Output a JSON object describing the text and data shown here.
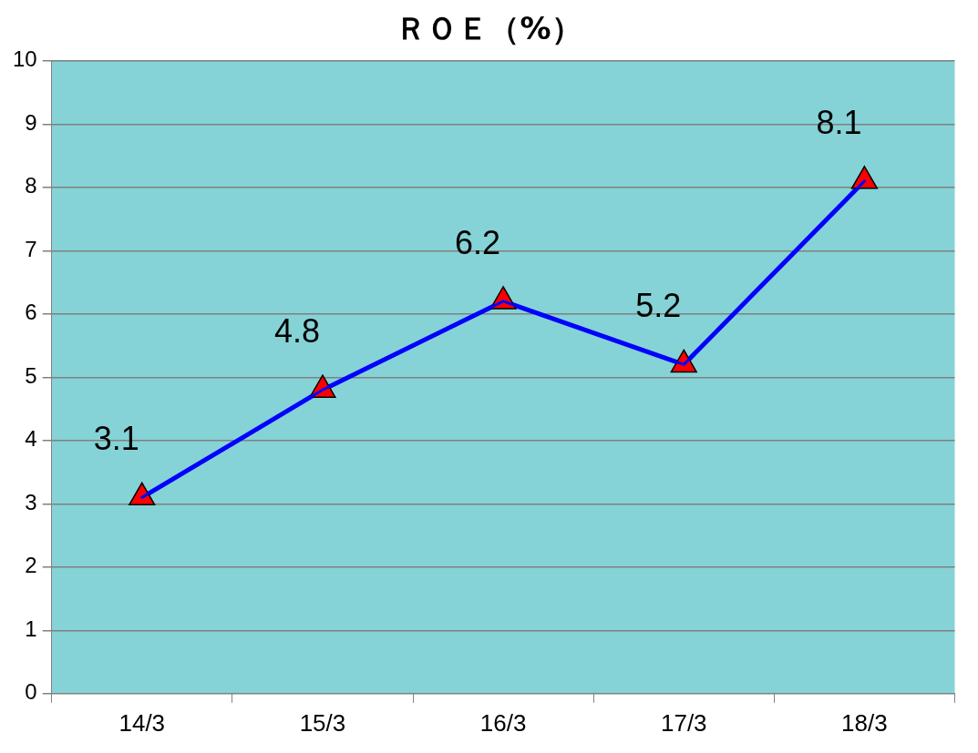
{
  "chart_data": {
    "type": "line",
    "title": "ＲＯＥ（%）",
    "categories": [
      "14/3",
      "15/3",
      "16/3",
      "17/3",
      "18/3"
    ],
    "series": [
      {
        "color": "#0000ff",
        "values": [
          3.1,
          4.8,
          6.2,
          5.2,
          8.1
        ]
      }
    ],
    "ylim": [
      0,
      10
    ],
    "yticks": [
      0,
      1,
      2,
      3,
      4,
      5,
      6,
      7,
      8,
      9,
      10
    ],
    "grid": "y",
    "legend": false,
    "marker": "triangle",
    "line_style": "solid",
    "data_labels": true
  }
}
